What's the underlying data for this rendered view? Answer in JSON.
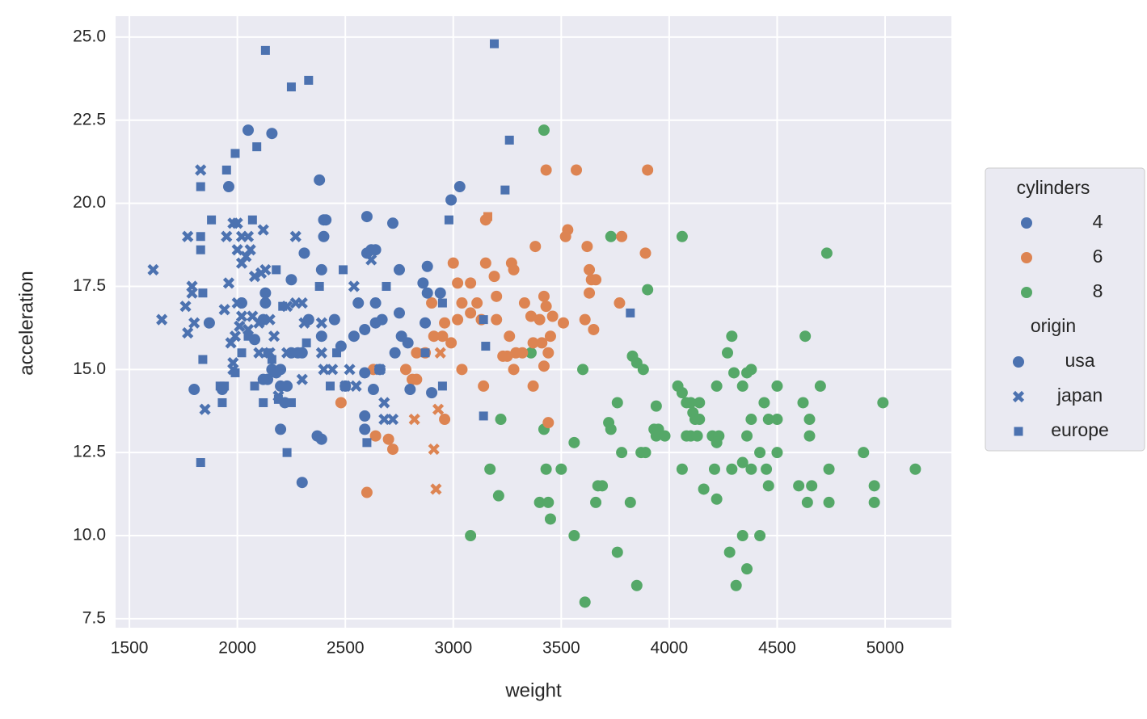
{
  "chart_data": {
    "type": "scatter",
    "xlabel": "weight",
    "ylabel": "acceleration",
    "xlim": [
      1436,
      5307
    ],
    "ylim": [
      7.23,
      25.63
    ],
    "xticks": [
      1500,
      2000,
      2500,
      3000,
      3500,
      4000,
      4500,
      5000
    ],
    "yticks": [
      7.5,
      {
        "value": 10,
        "label": "10.0"
      },
      12.5,
      {
        "value": 15,
        "label": "15.0"
      },
      17.5,
      {
        "value": 20,
        "label": "20.0"
      },
      22.5,
      {
        "value": 25,
        "label": "25.0"
      }
    ],
    "grid": true,
    "legend": {
      "position": "right",
      "hue_title": "cylinders",
      "hue_levels": [
        4,
        6,
        8
      ],
      "hue_colors": [
        "#4c72b0",
        "#dd8452",
        "#55a868"
      ],
      "style_title": "origin",
      "style_levels": [
        "usa",
        "japan",
        "europe"
      ],
      "style_markers": [
        "circle",
        "x",
        "square"
      ],
      "style_color": "#4c72b0"
    },
    "series": [
      {
        "cylinders": 8,
        "origin": "usa",
        "x": [
          3420,
          3730,
          4060,
          4730,
          3900,
          4290,
          4630,
          4270,
          3360,
          3600,
          3830,
          3850,
          3880,
          4300,
          4340,
          4360,
          4380,
          4220,
          4040,
          4060,
          4080,
          4100,
          4140,
          3760,
          3940,
          4440,
          4500,
          4620,
          4700,
          4990,
          4110,
          4120,
          4140,
          4380,
          4460,
          4500,
          4650,
          3220,
          3720,
          3730,
          3420,
          3930,
          3950,
          3940,
          3980,
          4080,
          4100,
          4130,
          4200,
          4230,
          4360,
          4650,
          3560,
          4220,
          3870,
          3890,
          3780,
          4420,
          4500,
          4900,
          4340,
          4290,
          4380,
          4450,
          4210,
          4060,
          3430,
          3500,
          3170,
          4740,
          5140,
          3210,
          3400,
          3440,
          3660,
          3820,
          4220,
          4160,
          4460,
          4660,
          3670,
          3690,
          4600,
          4950,
          4640,
          4740,
          4950,
          3450,
          3080,
          3560,
          4340,
          4420,
          4280,
          3760,
          4360,
          3850,
          4310,
          3610
        ],
        "y": [
          22.2,
          19,
          19,
          18.5,
          17.4,
          16,
          16,
          15.5,
          15.5,
          15,
          15.4,
          15.2,
          15,
          14.9,
          14.5,
          14.9,
          15,
          14.5,
          14.5,
          14.3,
          14,
          14,
          14,
          14,
          13.9,
          14,
          14.5,
          14,
          14.5,
          14,
          13.7,
          13.5,
          13.5,
          13.5,
          13.5,
          13.5,
          13.5,
          13.5,
          13.4,
          13.2,
          13.2,
          13.2,
          13.2,
          13,
          13,
          13,
          13,
          13,
          13,
          13,
          13,
          13,
          12.8,
          12.8,
          12.5,
          12.5,
          12.5,
          12.5,
          12.5,
          12.5,
          12.2,
          12,
          12,
          12,
          12,
          12,
          12,
          12,
          12,
          12,
          12,
          11.2,
          11,
          11,
          11,
          11,
          11.1,
          11.4,
          11.5,
          11.5,
          11.5,
          11.5,
          11.5,
          11.5,
          11,
          11,
          11,
          10.5,
          10,
          10,
          10,
          10,
          9.5,
          9.5,
          9,
          8.5,
          8.5,
          8
        ]
      },
      {
        "cylinders": 6,
        "origin": "usa",
        "x": [
          3430,
          3570,
          3900,
          3530,
          3520,
          3780,
          3620,
          3380,
          3890,
          3150,
          3000,
          3150,
          3270,
          3280,
          3630,
          3190,
          3020,
          3080,
          3640,
          3660,
          3630,
          2900,
          3040,
          3110,
          3200,
          3330,
          3420,
          3430,
          3770,
          3360,
          3400,
          3460,
          3510,
          3610,
          3020,
          3080,
          3130,
          3200,
          3650,
          2960,
          2910,
          2950,
          3260,
          3450,
          3370,
          3410,
          3440,
          2870,
          2830,
          2990,
          3230,
          3250,
          3290,
          3320,
          3420,
          2630,
          2780,
          3040,
          3280,
          2810,
          2830,
          3140,
          3370,
          2480,
          2960,
          3440,
          2640,
          2700,
          2720,
          2600
        ],
        "y": [
          21,
          21,
          21,
          19.2,
          19,
          19,
          18.7,
          18.7,
          18.5,
          19.5,
          18.2,
          18.2,
          18.2,
          18,
          18,
          17.8,
          17.6,
          17.6,
          17.7,
          17.7,
          17.3,
          17,
          17,
          17,
          17.2,
          17,
          17.2,
          16.9,
          17,
          16.6,
          16.5,
          16.6,
          16.4,
          16.5,
          16.5,
          16.7,
          16.5,
          16.5,
          16.2,
          16.4,
          16,
          16,
          16,
          16,
          15.8,
          15.8,
          15.5,
          15.5,
          15.5,
          15.8,
          15.4,
          15.4,
          15.5,
          15.5,
          15.1,
          15,
          15,
          15,
          15,
          14.7,
          14.7,
          14.5,
          14.5,
          14,
          13.5,
          13.4,
          13,
          12.9,
          12.6,
          11.3
        ]
      },
      {
        "cylinders": 6,
        "origin": "japan",
        "x": [
          2820,
          2930,
          2910,
          2920,
          2940
        ],
        "y": [
          13.5,
          13.8,
          12.6,
          11.4,
          15.5
        ]
      },
      {
        "cylinders": 6,
        "origin": "europe",
        "x": [
          3160
        ],
        "y": [
          19.6
        ]
      },
      {
        "cylinders": 4,
        "origin": "usa",
        "x": [
          2050,
          2160,
          2380,
          1960,
          3030,
          2990,
          2600,
          2400,
          2410,
          2720,
          2400,
          2600,
          2620,
          2640,
          2310,
          2880,
          2750,
          2390,
          2130,
          2250,
          2860,
          2880,
          2940,
          2020,
          2130,
          2560,
          2640,
          2670,
          2750,
          1870,
          2120,
          2330,
          2450,
          2640,
          2870,
          2080,
          2390,
          2540,
          2590,
          2760,
          2790,
          2480,
          2280,
          2300,
          2250,
          2730,
          2160,
          2180,
          2200,
          2590,
          2660,
          2140,
          2120,
          2200,
          2230,
          2500,
          2630,
          2800,
          2900,
          1800,
          1930,
          2220,
          2590,
          2590,
          2200,
          2370,
          2390,
          2300
        ],
        "y": [
          22.2,
          22.1,
          20.7,
          20.5,
          20.5,
          20.1,
          19.6,
          19.5,
          19.5,
          19.4,
          19,
          18.5,
          18.6,
          18.6,
          18.5,
          18.1,
          18,
          18,
          17.3,
          17.7,
          17.6,
          17.3,
          17.3,
          17,
          17,
          17,
          17,
          16.5,
          16.7,
          16.4,
          16.5,
          16.5,
          16.5,
          16.4,
          16.4,
          15.9,
          16,
          16,
          16.2,
          16,
          15.8,
          15.7,
          15.5,
          15.5,
          15.5,
          15.5,
          15,
          14.9,
          15,
          14.9,
          15,
          14.7,
          14.7,
          14.5,
          14.5,
          14.5,
          14.4,
          14.4,
          14.3,
          14.4,
          14.4,
          14,
          13.6,
          13.2,
          13.2,
          13,
          12.9,
          11.6
        ]
      },
      {
        "cylinders": 4,
        "origin": "japan",
        "x": [
          1610,
          1650,
          1770,
          1790,
          1790,
          1760,
          1800,
          1770,
          1830,
          1950,
          1980,
          2000,
          2020,
          2050,
          2120,
          2270,
          2000,
          2060,
          2040,
          2020,
          2080,
          2110,
          2130,
          1960,
          2000,
          2020,
          2070,
          2100,
          2150,
          2230,
          2270,
          2300,
          1940,
          2010,
          2050,
          1990,
          1970,
          2170,
          2310,
          2390,
          2100,
          2150,
          2230,
          2390,
          1980,
          1980,
          2400,
          2440,
          2520,
          2660,
          2300,
          2500,
          2550,
          2190,
          2680,
          2680,
          2720,
          1850,
          2620,
          2540
        ],
        "y": [
          18,
          16.5,
          19,
          17.5,
          17.3,
          16.9,
          16.4,
          16.1,
          21,
          19,
          19.4,
          19.4,
          19,
          19,
          19.2,
          19,
          18.6,
          18.6,
          18.4,
          18.2,
          17.8,
          17.9,
          18,
          17.6,
          17,
          16.6,
          16.6,
          16.4,
          16.5,
          16.9,
          17,
          17,
          16.8,
          16.3,
          16.2,
          16,
          15.8,
          16,
          16.4,
          16.4,
          15.5,
          15.5,
          15.5,
          15.5,
          15.2,
          15,
          15,
          15,
          15,
          15,
          14.7,
          14.5,
          14.5,
          14.2,
          14,
          13.5,
          13.5,
          13.8,
          18.3,
          17.5
        ]
      },
      {
        "cylinders": 4,
        "origin": "europe",
        "x": [
          2130,
          3190,
          2330,
          2250,
          2090,
          1990,
          3260,
          3240,
          1950,
          1830,
          1880,
          2070,
          2980,
          1830,
          1830,
          2180,
          2490,
          2380,
          2690,
          1840,
          2950,
          3140,
          3820,
          2210,
          2050,
          2020,
          2460,
          2320,
          1840,
          2160,
          2140,
          2870,
          3150,
          1990,
          1920,
          1940,
          2080,
          2430,
          2950,
          2190,
          2250,
          1930,
          2120,
          2600,
          2230,
          1830,
          3140
        ],
        "y": [
          24.6,
          24.8,
          23.7,
          23.5,
          21.7,
          21.5,
          21.9,
          20.4,
          21,
          20.5,
          19.5,
          19.5,
          19.5,
          19,
          18.6,
          18,
          18,
          17.5,
          17.5,
          17.3,
          17,
          16.5,
          16.7,
          16.9,
          16,
          15.5,
          15.5,
          15.8,
          15.3,
          15.3,
          15.5,
          15.5,
          15.7,
          14.9,
          14.5,
          14.5,
          14.5,
          14.5,
          14.5,
          14.1,
          14,
          14,
          14,
          12.8,
          12.5,
          12.2,
          13.6
        ]
      }
    ]
  }
}
